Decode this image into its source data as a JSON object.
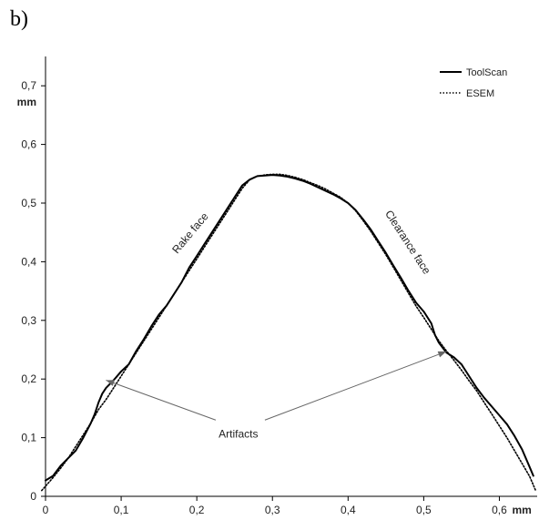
{
  "panel_label": "b)",
  "chart_data": {
    "type": "line",
    "xlabel": "",
    "ylabel": "",
    "x_unit": "mm",
    "y_unit": "mm",
    "xlim": [
      0,
      0.65
    ],
    "ylim": [
      0,
      0.75
    ],
    "x_ticks": [
      0,
      0.1,
      0.2,
      0.3,
      0.4,
      0.5,
      0.6
    ],
    "x_tick_labels": [
      "0",
      "0,1",
      "0,2",
      "0,3",
      "0,4",
      "0,5",
      "0,6"
    ],
    "y_ticks": [
      0,
      0.1,
      0.2,
      0.3,
      0.4,
      0.5,
      0.6,
      0.7
    ],
    "y_tick_labels": [
      "0",
      "0,1",
      "0,2",
      "0,3",
      "0,4",
      "0,5",
      "0,6",
      "0,7"
    ],
    "grid": false,
    "legend_position": "top-right",
    "series": [
      {
        "name": "ToolScan",
        "style": "solid",
        "color": "#000000",
        "x": [
          0,
          0.01,
          0.02,
          0.03,
          0.04,
          0.05,
          0.06,
          0.065,
          0.07,
          0.075,
          0.08,
          0.09,
          0.1,
          0.11,
          0.12,
          0.13,
          0.14,
          0.15,
          0.16,
          0.17,
          0.18,
          0.19,
          0.2,
          0.21,
          0.22,
          0.23,
          0.24,
          0.25,
          0.26,
          0.27,
          0.28,
          0.29,
          0.3,
          0.31,
          0.32,
          0.33,
          0.34,
          0.35,
          0.36,
          0.37,
          0.38,
          0.39,
          0.4,
          0.41,
          0.42,
          0.43,
          0.44,
          0.45,
          0.46,
          0.47,
          0.48,
          0.49,
          0.5,
          0.51,
          0.515,
          0.52,
          0.53,
          0.54,
          0.55,
          0.56,
          0.57,
          0.58,
          0.59,
          0.6,
          0.61,
          0.62,
          0.63,
          0.64,
          0.645
        ],
        "y": [
          0.027,
          0.035,
          0.052,
          0.065,
          0.078,
          0.1,
          0.125,
          0.14,
          0.16,
          0.175,
          0.185,
          0.198,
          0.213,
          0.225,
          0.248,
          0.268,
          0.29,
          0.31,
          0.325,
          0.345,
          0.365,
          0.39,
          0.41,
          0.43,
          0.45,
          0.47,
          0.49,
          0.51,
          0.53,
          0.54,
          0.546,
          0.547,
          0.548,
          0.547,
          0.545,
          0.542,
          0.538,
          0.533,
          0.527,
          0.521,
          0.515,
          0.508,
          0.5,
          0.488,
          0.472,
          0.455,
          0.435,
          0.415,
          0.393,
          0.372,
          0.35,
          0.33,
          0.315,
          0.295,
          0.275,
          0.262,
          0.245,
          0.237,
          0.225,
          0.205,
          0.185,
          0.168,
          0.153,
          0.138,
          0.123,
          0.103,
          0.08,
          0.05,
          0.035
        ]
      },
      {
        "name": "ESEM",
        "style": "dotted",
        "color": "#000000",
        "x": [
          -0.005,
          0.01,
          0.02,
          0.03,
          0.04,
          0.05,
          0.06,
          0.07,
          0.08,
          0.09,
          0.1,
          0.11,
          0.12,
          0.13,
          0.14,
          0.15,
          0.16,
          0.17,
          0.18,
          0.19,
          0.2,
          0.21,
          0.22,
          0.23,
          0.24,
          0.25,
          0.26,
          0.27,
          0.28,
          0.29,
          0.3,
          0.31,
          0.32,
          0.33,
          0.34,
          0.35,
          0.36,
          0.37,
          0.38,
          0.39,
          0.4,
          0.41,
          0.42,
          0.43,
          0.44,
          0.45,
          0.46,
          0.47,
          0.48,
          0.49,
          0.5,
          0.51,
          0.52,
          0.53,
          0.54,
          0.55,
          0.56,
          0.57,
          0.58,
          0.59,
          0.6,
          0.61,
          0.62,
          0.63,
          0.64,
          0.648
        ],
        "y": [
          0.01,
          0.032,
          0.048,
          0.065,
          0.085,
          0.105,
          0.125,
          0.148,
          0.165,
          0.185,
          0.205,
          0.225,
          0.245,
          0.265,
          0.285,
          0.305,
          0.325,
          0.345,
          0.365,
          0.385,
          0.405,
          0.425,
          0.445,
          0.465,
          0.485,
          0.505,
          0.525,
          0.54,
          0.546,
          0.548,
          0.549,
          0.549,
          0.547,
          0.544,
          0.54,
          0.535,
          0.53,
          0.524,
          0.517,
          0.51,
          0.5,
          0.487,
          0.47,
          0.452,
          0.432,
          0.412,
          0.39,
          0.368,
          0.346,
          0.324,
          0.305,
          0.285,
          0.265,
          0.248,
          0.232,
          0.215,
          0.197,
          0.18,
          0.16,
          0.14,
          0.12,
          0.1,
          0.078,
          0.056,
          0.034,
          0.01
        ]
      }
    ],
    "annotations": [
      {
        "text": "Rake face",
        "x": 0.195,
        "y": 0.445,
        "rotate": -50
      },
      {
        "text": "Clearance face",
        "x": 0.475,
        "y": 0.43,
        "rotate": 57
      },
      {
        "text": "Artifacts",
        "x": 0.255,
        "y": 0.1
      }
    ],
    "arrows": [
      {
        "from": [
          0.225,
          0.13
        ],
        "to": [
          0.08,
          0.198
        ]
      },
      {
        "from": [
          0.29,
          0.13
        ],
        "to": [
          0.53,
          0.247
        ]
      }
    ]
  }
}
